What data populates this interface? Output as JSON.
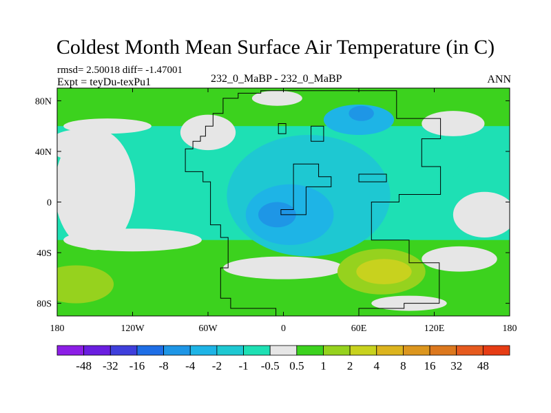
{
  "chart_data": {
    "type": "heatmap",
    "title": "Coldest Month Mean Surface Air Temperature (in C)",
    "stats": "rmsd= 2.50018 diff= -1.47001",
    "expt": "Expt = teyDu-texPu1",
    "subtitle": "232_0_MaBP - 232_0_MaBP",
    "season": "ANN",
    "xlim": [
      -180,
      180
    ],
    "ylim": [
      -90,
      90
    ],
    "x_ticks": [
      {
        "value": -180,
        "label": "180"
      },
      {
        "value": -120,
        "label": "120W"
      },
      {
        "value": -60,
        "label": "60W"
      },
      {
        "value": 0,
        "label": "0"
      },
      {
        "value": 60,
        "label": "60E"
      },
      {
        "value": 120,
        "label": "120E"
      },
      {
        "value": 180,
        "label": "180"
      }
    ],
    "y_ticks": [
      {
        "value": 80,
        "label": "80N"
      },
      {
        "value": 40,
        "label": "40N"
      },
      {
        "value": 0,
        "label": "0"
      },
      {
        "value": -40,
        "label": "40S"
      },
      {
        "value": -80,
        "label": "80S"
      }
    ],
    "colorbar": {
      "colors": [
        "#8c1ee6",
        "#6a1ee0",
        "#3f3fdc",
        "#1e6ee6",
        "#1e96e6",
        "#1eb4e6",
        "#1ec8d2",
        "#1ee0b4",
        "#e6e6e6",
        "#3cd21e",
        "#96d21e",
        "#c8d21e",
        "#dcb41e",
        "#dc961e",
        "#dc781e",
        "#e65a1e",
        "#e63c14"
      ],
      "labels": [
        "-48",
        "-32",
        "-16",
        "-8",
        "-4",
        "-2",
        "-1",
        "-0.5",
        "0.5",
        "1",
        "2",
        "4",
        "8",
        "16",
        "32",
        "48"
      ]
    },
    "continent_outline": [
      [
        -48,
        76
      ],
      [
        -48,
        82
      ],
      [
        -36,
        82
      ],
      [
        -36,
        86
      ],
      [
        -18,
        86
      ],
      [
        -18,
        88
      ],
      [
        90,
        88
      ],
      [
        90,
        66
      ],
      [
        125,
        66
      ],
      [
        125,
        50
      ],
      [
        110,
        50
      ],
      [
        110,
        28
      ],
      [
        125,
        28
      ],
      [
        125,
        6
      ],
      [
        92,
        6
      ],
      [
        92,
        0
      ],
      [
        70,
        0
      ],
      [
        70,
        -30
      ],
      [
        100,
        -30
      ],
      [
        100,
        -48
      ],
      [
        124,
        -48
      ],
      [
        124,
        -80
      ],
      [
        96,
        -80
      ],
      [
        96,
        -84
      ],
      [
        60,
        -84
      ],
      [
        60,
        -90
      ],
      [
        -6,
        -90
      ],
      [
        -6,
        -84
      ],
      [
        -42,
        -84
      ],
      [
        -42,
        -76
      ],
      [
        -50,
        -76
      ],
      [
        -50,
        -52
      ],
      [
        -44,
        -52
      ],
      [
        -44,
        -28
      ],
      [
        -50,
        -28
      ],
      [
        -50,
        -18
      ],
      [
        -58,
        -18
      ],
      [
        -58,
        16
      ],
      [
        -64,
        16
      ],
      [
        -64,
        24
      ],
      [
        -78,
        24
      ],
      [
        -78,
        42
      ],
      [
        -72,
        42
      ],
      [
        -72,
        48
      ],
      [
        -66,
        48
      ],
      [
        -66,
        52
      ],
      [
        -62,
        52
      ],
      [
        -62,
        60
      ],
      [
        -56,
        60
      ],
      [
        -56,
        70
      ],
      [
        -48,
        70
      ],
      [
        -48,
        76
      ]
    ],
    "interior_outlines": [
      [
        [
          8,
          30
        ],
        [
          8,
          -6
        ],
        [
          -2,
          -6
        ],
        [
          -2,
          -10
        ],
        [
          18,
          -10
        ],
        [
          18,
          12
        ],
        [
          38,
          12
        ],
        [
          38,
          20
        ],
        [
          28,
          20
        ],
        [
          28,
          30
        ],
        [
          8,
          30
        ]
      ],
      [
        [
          60,
          22
        ],
        [
          82,
          22
        ],
        [
          82,
          16
        ],
        [
          60,
          16
        ],
        [
          60,
          22
        ]
      ],
      [
        [
          22,
          60
        ],
        [
          32,
          60
        ],
        [
          32,
          48
        ],
        [
          22,
          48
        ],
        [
          22,
          60
        ]
      ],
      [
        [
          -4,
          62
        ],
        [
          2,
          62
        ],
        [
          2,
          54
        ],
        [
          -4,
          54
        ],
        [
          -4,
          62
        ]
      ]
    ],
    "regions": [
      {
        "level": 9,
        "shape": "rect",
        "lon": [
          -180,
          180
        ],
        "lat": [
          -90,
          90
        ]
      },
      {
        "level": 7,
        "shape": "rect",
        "lon": [
          -180,
          180
        ],
        "lat": [
          -30,
          60
        ]
      },
      {
        "level": 8,
        "shape": "ellipse",
        "cx": -150,
        "cy": 10,
        "rx": 32,
        "ry": 48
      },
      {
        "level": 8,
        "shape": "ellipse",
        "cx": -165,
        "cy": 45,
        "rx": 22,
        "ry": 12
      },
      {
        "level": 7,
        "shape": "ellipse",
        "cx": 95,
        "cy": 35,
        "rx": 55,
        "ry": 22
      },
      {
        "level": 6,
        "shape": "ellipse",
        "cx": 20,
        "cy": 5,
        "rx": 65,
        "ry": 48
      },
      {
        "level": 5,
        "shape": "ellipse",
        "cx": 5,
        "cy": -10,
        "rx": 35,
        "ry": 24
      },
      {
        "level": 5,
        "shape": "ellipse",
        "cx": 60,
        "cy": 65,
        "rx": 28,
        "ry": 12
      },
      {
        "level": 4,
        "shape": "ellipse",
        "cx": 62,
        "cy": 70,
        "rx": 10,
        "ry": 6
      },
      {
        "level": 4,
        "shape": "ellipse",
        "cx": -5,
        "cy": -10,
        "rx": 15,
        "ry": 10
      },
      {
        "level": 8,
        "shape": "ellipse",
        "cx": -60,
        "cy": 55,
        "rx": 22,
        "ry": 14
      },
      {
        "level": 8,
        "shape": "ellipse",
        "cx": 0,
        "cy": -52,
        "rx": 48,
        "ry": 9
      },
      {
        "level": 10,
        "shape": "ellipse",
        "cx": 78,
        "cy": -55,
        "rx": 35,
        "ry": 18
      },
      {
        "level": 11,
        "shape": "ellipse",
        "cx": 80,
        "cy": -55,
        "rx": 22,
        "ry": 10
      },
      {
        "level": 10,
        "shape": "ellipse",
        "cx": -165,
        "cy": -65,
        "rx": 30,
        "ry": 15
      },
      {
        "level": 8,
        "shape": "ellipse",
        "cx": -120,
        "cy": -30,
        "rx": 55,
        "ry": 9
      },
      {
        "level": 8,
        "shape": "ellipse",
        "cx": -140,
        "cy": 60,
        "rx": 35,
        "ry": 6
      },
      {
        "level": 8,
        "shape": "ellipse",
        "cx": 135,
        "cy": 62,
        "rx": 25,
        "ry": 10
      },
      {
        "level": 8,
        "shape": "ellipse",
        "cx": -5,
        "cy": 82,
        "rx": 20,
        "ry": 6
      },
      {
        "level": 8,
        "shape": "ellipse",
        "cx": 160,
        "cy": -10,
        "rx": 25,
        "ry": 18
      },
      {
        "level": 8,
        "shape": "ellipse",
        "cx": 140,
        "cy": -45,
        "rx": 30,
        "ry": 10
      },
      {
        "level": 8,
        "shape": "ellipse",
        "cx": 100,
        "cy": -80,
        "rx": 30,
        "ry": 6
      }
    ]
  }
}
